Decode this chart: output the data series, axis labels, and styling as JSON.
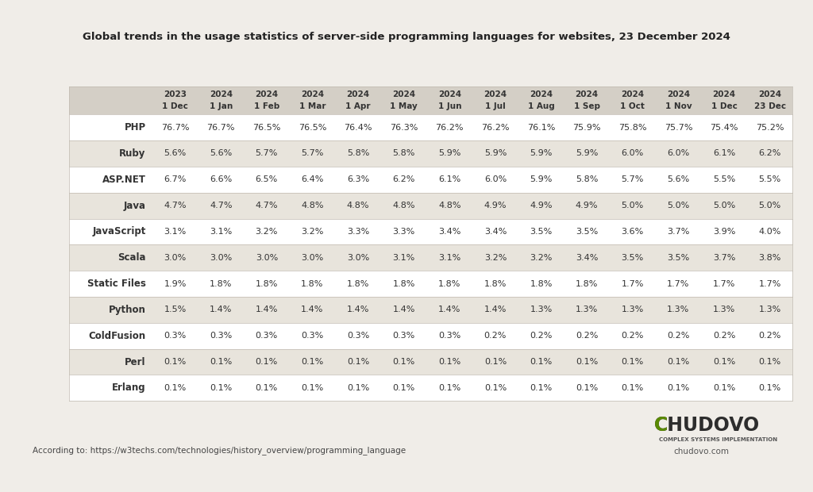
{
  "title": "Global trends in the usage statistics of server-side programming languages for websites, 23 December 2024",
  "col_headers_line1": [
    "2023",
    "2024",
    "2024",
    "2024",
    "2024",
    "2024",
    "2024",
    "2024",
    "2024",
    "2024",
    "2024",
    "2024",
    "2024",
    "2024"
  ],
  "col_headers_line2": [
    "1 Dec",
    "1 Jan",
    "1 Feb",
    "1 Mar",
    "1 Apr",
    "1 May",
    "1 Jun",
    "1 Jul",
    "1 Aug",
    "1 Sep",
    "1 Oct",
    "1 Nov",
    "1 Dec",
    "23 Dec"
  ],
  "row_labels": [
    "PHP",
    "Ruby",
    "ASP.NET",
    "Java",
    "JavaScript",
    "Scala",
    "Static Files",
    "Python",
    "ColdFusion",
    "Perl",
    "Erlang"
  ],
  "data": [
    [
      "76.7%",
      "76.7%",
      "76.5%",
      "76.5%",
      "76.4%",
      "76.3%",
      "76.2%",
      "76.2%",
      "76.1%",
      "75.9%",
      "75.8%",
      "75.7%",
      "75.4%",
      "75.2%"
    ],
    [
      "5.6%",
      "5.6%",
      "5.7%",
      "5.7%",
      "5.8%",
      "5.8%",
      "5.9%",
      "5.9%",
      "5.9%",
      "5.9%",
      "6.0%",
      "6.0%",
      "6.1%",
      "6.2%"
    ],
    [
      "6.7%",
      "6.6%",
      "6.5%",
      "6.4%",
      "6.3%",
      "6.2%",
      "6.1%",
      "6.0%",
      "5.9%",
      "5.8%",
      "5.7%",
      "5.6%",
      "5.5%",
      "5.5%"
    ],
    [
      "4.7%",
      "4.7%",
      "4.7%",
      "4.8%",
      "4.8%",
      "4.8%",
      "4.8%",
      "4.9%",
      "4.9%",
      "4.9%",
      "5.0%",
      "5.0%",
      "5.0%",
      "5.0%"
    ],
    [
      "3.1%",
      "3.1%",
      "3.2%",
      "3.2%",
      "3.3%",
      "3.3%",
      "3.4%",
      "3.4%",
      "3.5%",
      "3.5%",
      "3.6%",
      "3.7%",
      "3.9%",
      "4.0%"
    ],
    [
      "3.0%",
      "3.0%",
      "3.0%",
      "3.0%",
      "3.0%",
      "3.1%",
      "3.1%",
      "3.2%",
      "3.2%",
      "3.4%",
      "3.5%",
      "3.5%",
      "3.7%",
      "3.8%"
    ],
    [
      "1.9%",
      "1.8%",
      "1.8%",
      "1.8%",
      "1.8%",
      "1.8%",
      "1.8%",
      "1.8%",
      "1.8%",
      "1.8%",
      "1.7%",
      "1.7%",
      "1.7%",
      "1.7%"
    ],
    [
      "1.5%",
      "1.4%",
      "1.4%",
      "1.4%",
      "1.4%",
      "1.4%",
      "1.4%",
      "1.4%",
      "1.3%",
      "1.3%",
      "1.3%",
      "1.3%",
      "1.3%",
      "1.3%"
    ],
    [
      "0.3%",
      "0.3%",
      "0.3%",
      "0.3%",
      "0.3%",
      "0.3%",
      "0.3%",
      "0.2%",
      "0.2%",
      "0.2%",
      "0.2%",
      "0.2%",
      "0.2%",
      "0.2%"
    ],
    [
      "0.1%",
      "0.1%",
      "0.1%",
      "0.1%",
      "0.1%",
      "0.1%",
      "0.1%",
      "0.1%",
      "0.1%",
      "0.1%",
      "0.1%",
      "0.1%",
      "0.1%",
      "0.1%"
    ],
    [
      "0.1%",
      "0.1%",
      "0.1%",
      "0.1%",
      "0.1%",
      "0.1%",
      "0.1%",
      "0.1%",
      "0.1%",
      "0.1%",
      "0.1%",
      "0.1%",
      "0.1%",
      "0.1%"
    ]
  ],
  "bg_color": "#f0ede8",
  "table_bg_white": "#ffffff",
  "row_shaded": "#e8e4dc",
  "header_shaded": "#d4cfc6",
  "text_color": "#333333",
  "title_color": "#222222",
  "footer_text": "According to: https://w3techs.com/technologies/history_overview/programming_language",
  "logo_text_chudovo": "CHUDOVO",
  "logo_subtext": "COMPLEX SYSTEMS IMPLEMENTATION",
  "logo_url": "chudovo.com",
  "logo_color_C": "#5a8a00",
  "logo_color_rest": "#2d2d2d",
  "line_color": "#c0bab0",
  "footer_color": "#444444",
  "logo_sub_color": "#555555"
}
